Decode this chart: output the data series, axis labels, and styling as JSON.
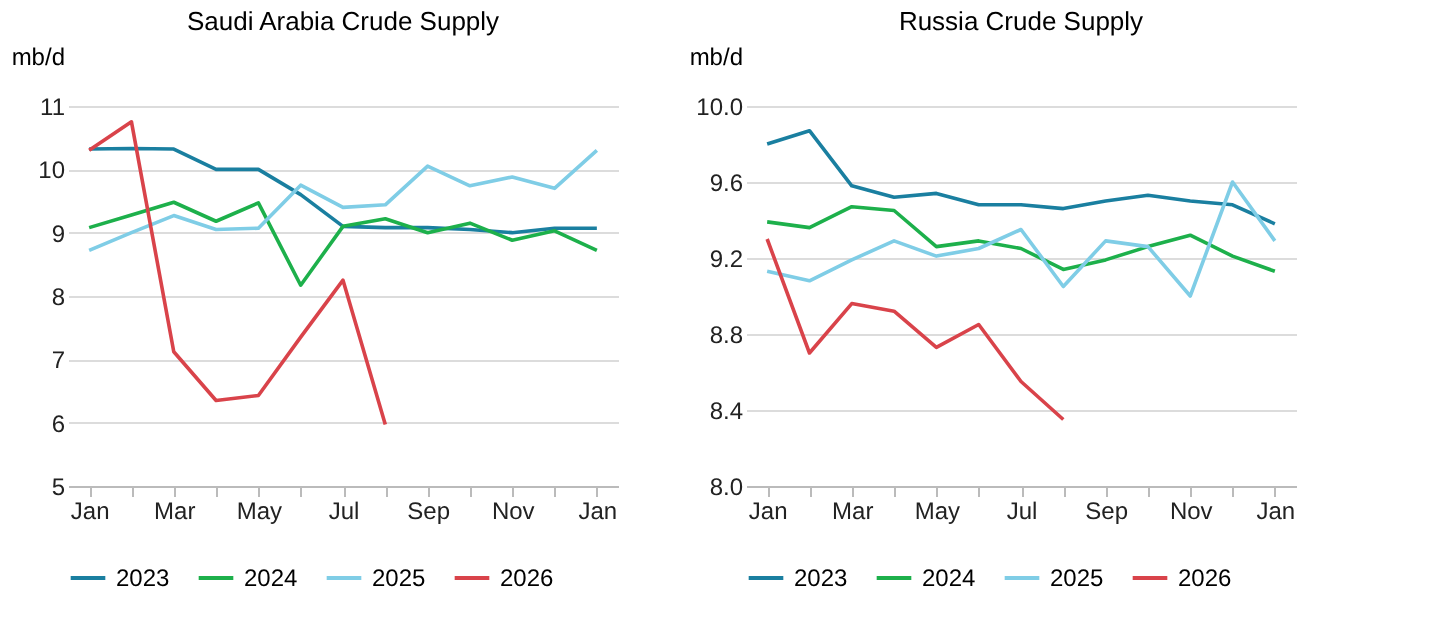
{
  "chart_data": [
    {
      "type": "line",
      "title": "Saudi Arabia Crude Supply",
      "ylabel": "mb/d",
      "categories": [
        "Jan",
        null,
        "Mar",
        null,
        "May",
        null,
        "Jul",
        null,
        "Sep",
        null,
        "Nov",
        null,
        "Jan"
      ],
      "ylim": [
        5,
        11
      ],
      "yticks": [
        5,
        6,
        7,
        8,
        9,
        10,
        11
      ],
      "grid": "y",
      "legend": "bottom",
      "marker": "none",
      "line_style": "solid",
      "series": [
        {
          "name": "2023",
          "color": "#1a7fa0",
          "values": [
            10.32,
            10.33,
            10.32,
            10.0,
            10.0,
            9.6,
            9.1,
            9.08,
            9.08,
            9.05,
            9.0,
            9.07,
            9.07
          ]
        },
        {
          "name": "2024",
          "color": "#1db04b",
          "values": [
            9.08,
            9.28,
            9.48,
            9.18,
            9.47,
            8.17,
            9.1,
            9.22,
            9.0,
            9.15,
            8.88,
            9.03,
            8.72
          ]
        },
        {
          "name": "2025",
          "color": "#7fcde6",
          "values": [
            8.72,
            9.0,
            9.27,
            9.05,
            9.07,
            9.75,
            9.4,
            9.44,
            10.05,
            9.74,
            9.88,
            9.7,
            10.3
          ]
        },
        {
          "name": "2026",
          "color": "#d9434a",
          "values": [
            10.3,
            10.75,
            7.12,
            6.35,
            6.43,
            7.35,
            8.25,
            5.97,
            null,
            null,
            null,
            null,
            null
          ]
        }
      ]
    },
    {
      "type": "line",
      "title": "Russia Crude Supply",
      "ylabel": "mb/d",
      "categories": [
        "Jan",
        null,
        "Mar",
        null,
        "May",
        null,
        "Jul",
        null,
        "Sep",
        null,
        "Nov",
        null,
        "Jan"
      ],
      "ylim": [
        8.0,
        10.0
      ],
      "yticks": [
        {
          "value": 8.0,
          "label": "8.0"
        },
        {
          "value": 8.4,
          "label": "8.4"
        },
        {
          "value": 8.8,
          "label": "8.8"
        },
        {
          "value": 9.2,
          "label": "9.2"
        },
        {
          "value": 9.6,
          "label": "9.6"
        },
        {
          "value": 10.0,
          "label": "10.0"
        }
      ],
      "grid": "y",
      "legend": "bottom",
      "marker": "none",
      "line_style": "solid",
      "series": [
        {
          "name": "2023",
          "color": "#1a7fa0",
          "values": [
            9.8,
            9.87,
            9.58,
            9.52,
            9.54,
            9.48,
            9.48,
            9.46,
            9.5,
            9.53,
            9.5,
            9.48,
            9.38
          ]
        },
        {
          "name": "2024",
          "color": "#1db04b",
          "values": [
            9.39,
            9.36,
            9.47,
            9.45,
            9.26,
            9.29,
            9.25,
            9.14,
            9.19,
            9.26,
            9.32,
            9.21,
            9.13
          ]
        },
        {
          "name": "2025",
          "color": "#7fcde6",
          "values": [
            9.13,
            9.08,
            9.19,
            9.29,
            9.21,
            9.25,
            9.35,
            9.05,
            9.29,
            9.26,
            9.0,
            9.6,
            9.29
          ]
        },
        {
          "name": "2026",
          "color": "#d9434a",
          "values": [
            9.3,
            8.7,
            8.96,
            8.92,
            8.73,
            8.85,
            8.55,
            8.35,
            null,
            null,
            null,
            null,
            null
          ]
        }
      ]
    }
  ]
}
